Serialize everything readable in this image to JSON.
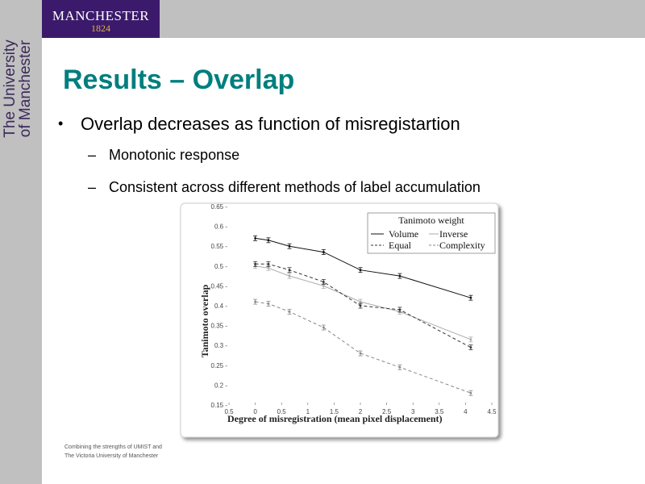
{
  "brand": {
    "logo_name": "MANCHESTER",
    "logo_year": "1824",
    "side_line1": "The University",
    "side_line2": "of Manchester"
  },
  "slide": {
    "title": "Results – Overlap",
    "bullet_marker": "•",
    "bullet": "Overlap decreases as function of misregistartion",
    "sub_marker": "–",
    "sub_items": [
      "Monotonic response",
      "Consistent across different methods of label accumulation"
    ]
  },
  "footer": {
    "line1": "Combining the strengths of UMIST and",
    "line2": "The Victoria University of Manchester"
  },
  "colors": {
    "accent_title": "#007e7e",
    "brand_purple": "#3b1a6b",
    "brand_gold": "#e2b33a",
    "frame_gray": "#c0c0c0"
  },
  "chart_data": {
    "type": "line",
    "xlabel": "Degree of misregistration (mean pixel displacement)",
    "ylabel": "Tanimoto overlap",
    "xlim": [
      -0.5,
      4.5
    ],
    "ylim": [
      0.15,
      0.65
    ],
    "x_ticks": [
      "0.5",
      "0",
      "0.5",
      "1",
      "1.5",
      "2",
      "2.5",
      "3",
      "3.5",
      "4",
      "4.5"
    ],
    "y_ticks": [
      "0.15",
      "0.2",
      "0.25",
      "0.3",
      "0.35",
      "0.4",
      "0.45",
      "0.5",
      "0.55",
      "0.6",
      "0.65"
    ],
    "legend": {
      "title": "Tanimoto weight",
      "position": "top-right",
      "entries": [
        "Volume",
        "Inverse",
        "Equal",
        "Complexity"
      ]
    },
    "x": [
      0,
      0.25,
      0.65,
      1.3,
      2.0,
      2.75,
      4.1
    ],
    "series": [
      {
        "name": "Volume",
        "style": "solid",
        "color": "#111111",
        "values": [
          0.57,
          0.565,
          0.55,
          0.535,
          0.49,
          0.475,
          0.42
        ]
      },
      {
        "name": "Inverse",
        "style": "solid",
        "color": "#aaaaaa",
        "values": [
          0.5,
          0.495,
          0.475,
          0.45,
          0.41,
          0.385,
          0.315
        ]
      },
      {
        "name": "Equal",
        "style": "dashed",
        "color": "#333333",
        "values": [
          0.505,
          0.505,
          0.49,
          0.46,
          0.4,
          0.39,
          0.295
        ]
      },
      {
        "name": "Complexity",
        "style": "dashed",
        "color": "#888888",
        "values": [
          0.41,
          0.405,
          0.385,
          0.345,
          0.28,
          0.245,
          0.18
        ]
      }
    ]
  }
}
